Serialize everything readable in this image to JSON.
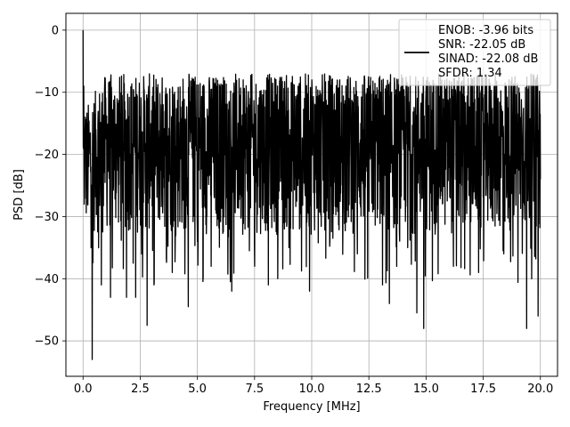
{
  "chart_data": {
    "type": "line",
    "title": "",
    "xlabel": "Frequency [MHz]",
    "ylabel": "PSD [dB]",
    "xlim": [
      -0.75,
      20.75
    ],
    "ylim": [
      -55.7,
      2.7
    ],
    "xticks": [
      0.0,
      2.5,
      5.0,
      7.5,
      10.0,
      12.5,
      15.0,
      17.5,
      20.0
    ],
    "xtick_labels": [
      "0.0",
      "2.5",
      "5.0",
      "7.5",
      "10.0",
      "12.5",
      "15.0",
      "17.5",
      "20.0"
    ],
    "yticks": [
      0,
      -10,
      -20,
      -30,
      -40,
      -50
    ],
    "ytick_labels": [
      "0",
      "−10",
      "−20",
      "−30",
      "−40",
      "−50"
    ],
    "grid": true,
    "legend_position": "top-right",
    "series": [
      {
        "name": "ENOB: -3.96 bits\nSNR: -22.05 dB\nSINAD: -22.08 dB\nSFDR: 1.34",
        "legend_lines": [
          "ENOB: -3.96 bits",
          "SNR: -22.05 dB",
          "SINAD: -22.08 dB",
          "SFDR: 1.34"
        ],
        "color": "#000000",
        "x_range": [
          0.0,
          20.0
        ],
        "approx_points": [
          [
            0.0,
            0.0
          ],
          [
            0.03,
            -9.0
          ],
          [
            0.06,
            -20.0
          ],
          [
            0.1,
            -14.0
          ],
          [
            0.2,
            -28.0
          ],
          [
            0.3,
            -18.0
          ],
          [
            0.4,
            -53.0
          ],
          [
            0.5,
            -22.0
          ],
          [
            0.8,
            -41.0
          ],
          [
            1.0,
            -15.0
          ],
          [
            1.2,
            -43.0
          ],
          [
            1.5,
            -20.0
          ],
          [
            1.9,
            -43.0
          ],
          [
            2.0,
            -17.0
          ],
          [
            2.3,
            -43.0
          ],
          [
            2.5,
            -14.0
          ],
          [
            2.8,
            -47.5
          ],
          [
            3.0,
            -13.0
          ],
          [
            3.1,
            -41.0
          ],
          [
            3.5,
            -12.0
          ],
          [
            3.9,
            -39.0
          ],
          [
            4.0,
            -10.0
          ],
          [
            4.6,
            -44.5
          ],
          [
            4.8,
            -8.0
          ],
          [
            5.0,
            -34.0
          ],
          [
            5.6,
            -38.0
          ],
          [
            6.0,
            -9.0
          ],
          [
            6.5,
            -42.0
          ],
          [
            7.0,
            -8.0
          ],
          [
            7.5,
            -38.0
          ],
          [
            8.1,
            -41.0
          ],
          [
            8.5,
            -9.0
          ],
          [
            9.0,
            -35.0
          ],
          [
            9.9,
            -42.0
          ],
          [
            10.0,
            -8.0
          ],
          [
            10.8,
            -34.0
          ],
          [
            11.5,
            -9.0
          ],
          [
            12.0,
            -36.0
          ],
          [
            13.1,
            -41.0
          ],
          [
            13.5,
            -10.0
          ],
          [
            13.4,
            -44.0
          ],
          [
            14.2,
            -35.0
          ],
          [
            14.6,
            -45.5
          ],
          [
            15.0,
            -10.0
          ],
          [
            14.9,
            -48.0
          ],
          [
            16.2,
            -38.0
          ],
          [
            16.5,
            -10.0
          ],
          [
            17.3,
            -39.0
          ],
          [
            18.0,
            -9.0
          ],
          [
            18.4,
            -36.0
          ],
          [
            19.4,
            -48.0
          ],
          [
            19.5,
            -9.0
          ],
          [
            19.9,
            -46.0
          ],
          [
            20.0,
            -24.0
          ]
        ],
        "noise_floor_mean": -20,
        "envelope_top": -7,
        "envelope_bottom": -33
      }
    ]
  }
}
